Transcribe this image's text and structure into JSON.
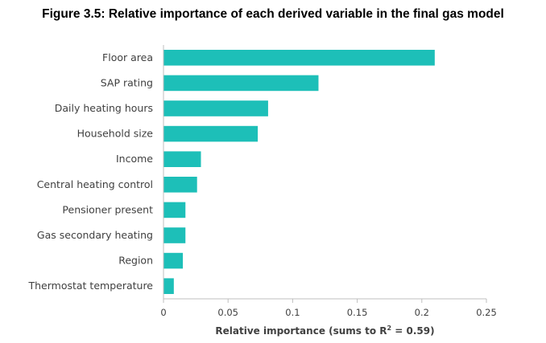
{
  "figure_title": "Figure 3.5: Relative importance of each derived variable in the final gas model",
  "chart_data": {
    "type": "bar",
    "orientation": "horizontal",
    "categories": [
      "Floor area",
      "SAP rating",
      "Daily heating hours",
      "Household size",
      "Income",
      "Central heating control",
      "Pensioner present",
      "Gas secondary heating",
      "Region",
      "Thermostat temperature"
    ],
    "values": [
      0.21,
      0.12,
      0.081,
      0.073,
      0.029,
      0.026,
      0.017,
      0.017,
      0.015,
      0.008
    ],
    "xlabel_prefix": "Relative importance (sums to R",
    "xlabel_sup": "2",
    "xlabel_suffix": " = 0.59)",
    "xlim": [
      0,
      0.25
    ],
    "xticks": [
      "0",
      "0.05",
      "0.1",
      "0.15",
      "0.2",
      "0.25"
    ],
    "grid": false,
    "bar_color": "#1DBFB8",
    "axis_color": "#bfbfbf"
  }
}
